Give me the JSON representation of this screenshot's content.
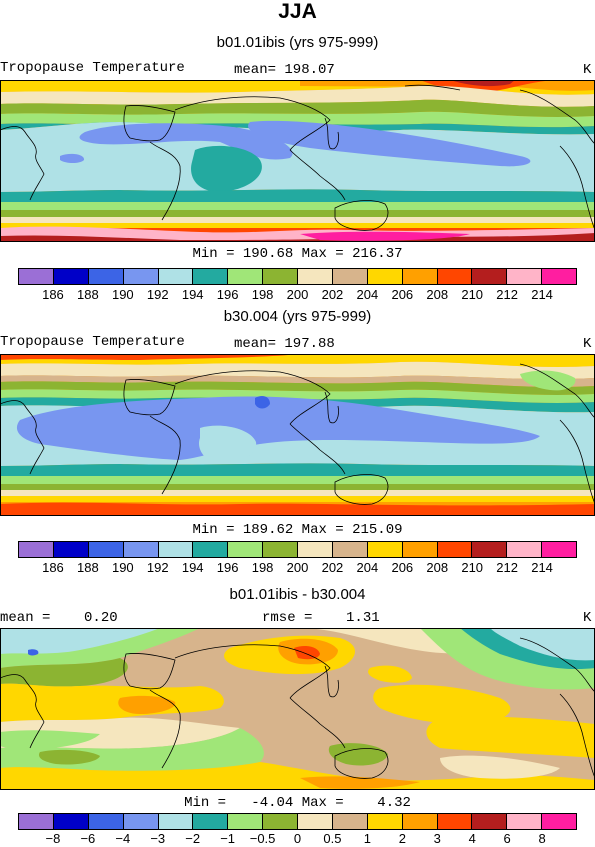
{
  "season": "JJA",
  "panels": [
    {
      "subtitle": "b01.01ibis (yrs 975-999)",
      "left_label": "Tropopause Temperature",
      "center_label": "mean= 198.07",
      "units": "K",
      "minmax": "Min = 190.68 Max = 216.37"
    },
    {
      "subtitle": "b30.004 (yrs 975-999)",
      "left_label": "Tropopause Temperature",
      "center_label": "mean= 197.88",
      "units": "K",
      "minmax": "Min = 189.62 Max = 215.09"
    },
    {
      "subtitle": "b01.01ibis - b30.004",
      "left_label": "mean =    0.20",
      "center_label": "rmse =    1.31",
      "units": "K",
      "minmax": "Min =   -4.04 Max =    4.32"
    }
  ],
  "colorbar_colors": [
    "#9b6fd6",
    "#0000c8",
    "#3c64e6",
    "#7896f0",
    "#afe1e6",
    "#23aaa0",
    "#a0e678",
    "#8cb432",
    "#f5e6be",
    "#d7b48c",
    "#ffd700",
    "#ffa000",
    "#ff4600",
    "#b41e1e",
    "#ffb4c8",
    "#ff1ea0"
  ],
  "colorbar_ticks_abs": [
    "186",
    "188",
    "190",
    "192",
    "194",
    "196",
    "198",
    "200",
    "202",
    "204",
    "206",
    "208",
    "210",
    "212",
    "214"
  ],
  "colorbar_ticks_diff": [
    "−8",
    "−6",
    "−4",
    "−3",
    "−2",
    "−1",
    "−0.5",
    "0",
    "0.5",
    "1",
    "2",
    "3",
    "4",
    "6",
    "8"
  ]
}
